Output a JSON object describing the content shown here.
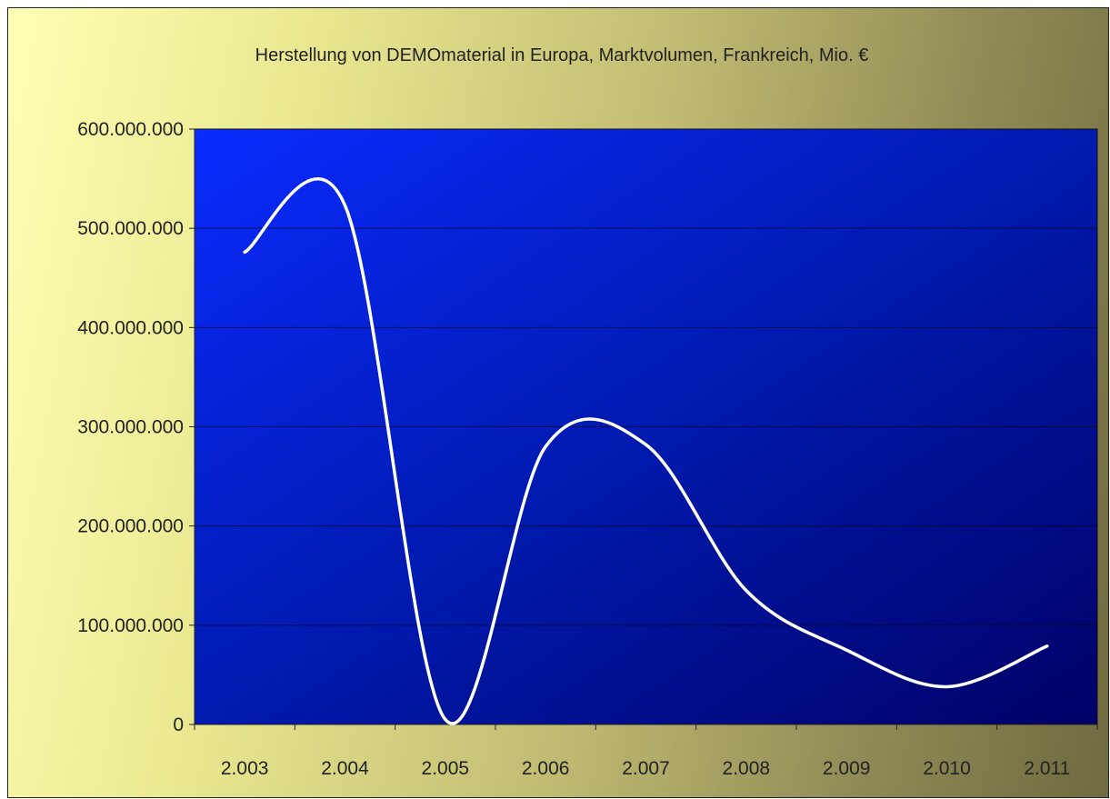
{
  "chart_data": {
    "type": "line",
    "title": "Herstellung von DEMOmaterial in Europa, Marktvolumen, Frankreich, Mio. €",
    "xlabel": "",
    "ylabel": "",
    "categories": [
      "2.003",
      "2.004",
      "2.005",
      "2.006",
      "2.007",
      "2.008",
      "2.009",
      "2.010",
      "2.011"
    ],
    "y_tick_labels": [
      "0",
      "100.000.000",
      "200.000.000",
      "300.000.000",
      "400.000.000",
      "500.000.000",
      "600.000.000"
    ],
    "ylim": [
      0,
      600000000
    ],
    "series": [
      {
        "values": [
          476000000,
          523000000,
          5000000,
          280000000,
          282000000,
          135000000,
          75000000,
          38000000,
          79000000
        ]
      }
    ],
    "grid": true,
    "legend": "none",
    "line_smoothed": true
  },
  "colors": {
    "line": "#ffffff",
    "plot_gradient_start": "#0a2bff",
    "plot_gradient_end": "#000066",
    "gridline": "#000000",
    "text": "#222222"
  }
}
